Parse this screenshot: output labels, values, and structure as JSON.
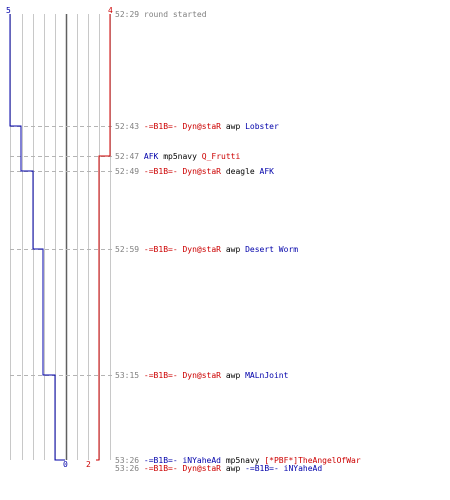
{
  "scoreboard": {
    "team_blue_start": "5",
    "team_red_start": "4",
    "team_blue_end": "0",
    "team_red_end": "2"
  },
  "colors": {
    "team_blue": "#0000aa",
    "team_red": "#cc0000",
    "timestamp": "#808080",
    "grid": "#c8c8c8",
    "dashed_line": "#b4b4b4",
    "center_line": "#606060"
  },
  "events": [
    {
      "time": "52:29",
      "parts": [
        {
          "text": "round started",
          "color": "gray"
        }
      ]
    },
    {
      "time": "52:43",
      "parts": [
        {
          "text": "-=B1B=- Dyn@staR",
          "color": "red"
        },
        {
          "text": "awp",
          "color": "black"
        },
        {
          "text": "Lobster",
          "color": "blue"
        }
      ]
    },
    {
      "time": "52:47",
      "parts": [
        {
          "text": "AFK",
          "color": "blue"
        },
        {
          "text": "mp5navy",
          "color": "black"
        },
        {
          "text": "Q_Frutti",
          "color": "red"
        }
      ]
    },
    {
      "time": "52:49",
      "parts": [
        {
          "text": "-=B1B=- Dyn@staR",
          "color": "red"
        },
        {
          "text": "deagle",
          "color": "black"
        },
        {
          "text": "AFK",
          "color": "blue"
        }
      ]
    },
    {
      "time": "52:59",
      "parts": [
        {
          "text": "-=B1B=- Dyn@staR",
          "color": "red"
        },
        {
          "text": "awp",
          "color": "black"
        },
        {
          "text": "Desert Worm",
          "color": "blue"
        }
      ]
    },
    {
      "time": "53:15",
      "parts": [
        {
          "text": "-=B1B=- Dyn@staR",
          "color": "red"
        },
        {
          "text": "awp",
          "color": "black"
        },
        {
          "text": "MALnJoint",
          "color": "blue"
        }
      ]
    },
    {
      "time": "53:26",
      "parts": [
        {
          "text": "-=B1B=- iNYaheAd",
          "color": "blue"
        },
        {
          "text": "mp5navy",
          "color": "black"
        },
        {
          "text": "[*PBF*]TheAngelOfWar",
          "color": "red"
        }
      ]
    },
    {
      "time": "53:26",
      "parts": [
        {
          "text": "-=B1B=- Dyn@staR",
          "color": "red"
        },
        {
          "text": "awp",
          "color": "black"
        },
        {
          "text": "-=B1B=- iNYaheAd",
          "color": "blue"
        }
      ]
    }
  ]
}
